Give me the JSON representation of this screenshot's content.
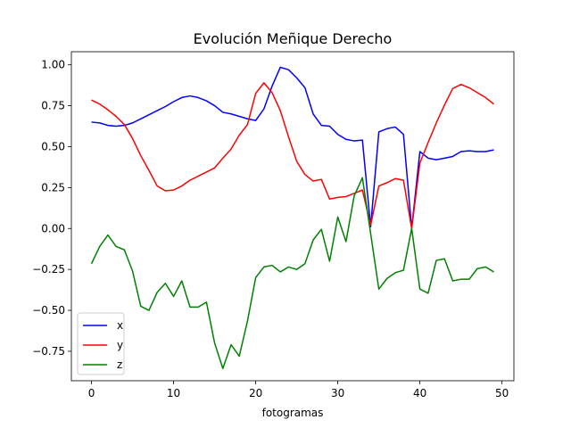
{
  "chart_data": {
    "type": "line",
    "title": "Evolución Meñique Derecho",
    "xlabel": "fotogramas",
    "ylabel": "",
    "xlim": [
      -2.45,
      51.45
    ],
    "ylim": [
      -0.93,
      1.08
    ],
    "x_ticks": [
      0,
      10,
      20,
      30,
      40,
      50
    ],
    "y_ticks": [
      -0.75,
      -0.5,
      -0.25,
      0.0,
      0.25,
      0.5,
      0.75,
      1.0
    ],
    "x_tick_labels": [
      "0",
      "10",
      "20",
      "30",
      "40",
      "50"
    ],
    "y_tick_labels": [
      "−0.75",
      "−0.50",
      "−0.25",
      "0.00",
      "0.25",
      "0.50",
      "0.75",
      "1.00"
    ],
    "grid": false,
    "legend_position": "lower-left",
    "x": [
      0,
      1,
      2,
      3,
      4,
      5,
      6,
      7,
      8,
      9,
      10,
      11,
      12,
      13,
      14,
      15,
      16,
      17,
      18,
      19,
      20,
      21,
      22,
      23,
      24,
      25,
      26,
      27,
      28,
      29,
      30,
      31,
      32,
      33,
      34,
      35,
      36,
      37,
      38,
      39,
      40,
      41,
      42,
      43,
      44,
      45,
      46,
      47,
      48,
      49
    ],
    "series": [
      {
        "name": "x",
        "color": "#0000ff",
        "values": [
          0.65,
          0.645,
          0.63,
          0.625,
          0.63,
          0.645,
          0.67,
          0.695,
          0.72,
          0.745,
          0.775,
          0.8,
          0.81,
          0.8,
          0.78,
          0.75,
          0.71,
          0.7,
          0.685,
          0.67,
          0.66,
          0.73,
          0.87,
          0.985,
          0.97,
          0.92,
          0.86,
          0.7,
          0.63,
          0.625,
          0.575,
          0.545,
          0.535,
          0.54,
          0.01,
          0.59,
          0.61,
          0.62,
          0.575,
          0.0,
          0.47,
          0.43,
          0.42,
          0.43,
          0.44,
          0.47,
          0.475,
          0.47,
          0.47,
          0.48
        ]
      },
      {
        "name": "y",
        "color": "#ff0000",
        "values": [
          0.785,
          0.76,
          0.725,
          0.685,
          0.635,
          0.55,
          0.445,
          0.355,
          0.26,
          0.23,
          0.235,
          0.26,
          0.295,
          0.32,
          0.345,
          0.37,
          0.43,
          0.485,
          0.57,
          0.635,
          0.825,
          0.89,
          0.83,
          0.72,
          0.56,
          0.41,
          0.33,
          0.29,
          0.3,
          0.18,
          0.19,
          0.195,
          0.215,
          0.235,
          0.02,
          0.26,
          0.28,
          0.305,
          0.295,
          0.0,
          0.4,
          0.525,
          0.645,
          0.755,
          0.855,
          0.88,
          0.86,
          0.83,
          0.8,
          0.76
        ]
      },
      {
        "name": "z",
        "color": "#008000",
        "values": [
          -0.215,
          -0.11,
          -0.04,
          -0.11,
          -0.13,
          -0.26,
          -0.475,
          -0.5,
          -0.39,
          -0.335,
          -0.415,
          -0.32,
          -0.48,
          -0.48,
          -0.45,
          -0.7,
          -0.855,
          -0.71,
          -0.78,
          -0.565,
          -0.3,
          -0.235,
          -0.225,
          -0.265,
          -0.235,
          -0.25,
          -0.215,
          -0.07,
          -0.005,
          -0.2,
          0.07,
          -0.08,
          0.2,
          0.31,
          -0.03,
          -0.37,
          -0.305,
          -0.27,
          -0.255,
          0.0,
          -0.37,
          -0.395,
          -0.195,
          -0.185,
          -0.32,
          -0.31,
          -0.31,
          -0.245,
          -0.235,
          -0.265
        ]
      }
    ]
  }
}
